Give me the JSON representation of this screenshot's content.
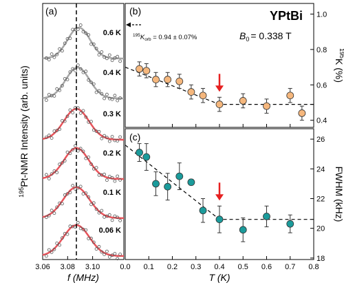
{
  "figure": {
    "material": "YPtBi",
    "field_label": "B",
    "field_sub": "0",
    "field_value": "= 0.338 T"
  },
  "chart_data": [
    {
      "panel": "(a)",
      "type": "line",
      "xlabel": "f (MHz)",
      "ylabel_sup": "195",
      "ylabel": "Pt-NMR Intensity (arb. units)",
      "xlim": [
        3.06,
        3.125
      ],
      "xticks": [
        "3.06",
        "3.08",
        "3.10"
      ],
      "xtick_values": [
        3.06,
        3.08,
        3.1
      ],
      "reference_line_x": 3.087,
      "series": [
        {
          "name": "0.6 K",
          "fit_color": "#a6a6a6",
          "peak": 3.089,
          "width": 0.009
        },
        {
          "name": "0.4 K",
          "fit_color": "#a6a6a6",
          "peak": 3.088,
          "width": 0.0095
        },
        {
          "name": "0.3 K",
          "fit_color": "#e8535a",
          "peak": 3.087,
          "width": 0.01
        },
        {
          "name": "0.2 K",
          "fit_color": "#e8535a",
          "peak": 3.087,
          "width": 0.01
        },
        {
          "name": "0.1 K",
          "fit_color": "#e8535a",
          "peak": 3.087,
          "width": 0.0105
        },
        {
          "name": "0.06 K",
          "fit_color": "#e8535a",
          "peak": 3.087,
          "width": 0.0105
        }
      ]
    },
    {
      "panel": "(b)",
      "type": "scatter",
      "xlabel": "T (K)",
      "ylabel_sup": "195",
      "ylabel": "K (%)",
      "xlim": [
        0,
        0.8
      ],
      "ylim": [
        0.36,
        1.06
      ],
      "yticks": [
        "0.4",
        "0.6",
        "0.8",
        "1.0"
      ],
      "ytick_values": [
        0.4,
        0.6,
        0.8,
        1.0
      ],
      "marker_color": "#f5b77d",
      "x": [
        0.06,
        0.09,
        0.13,
        0.18,
        0.23,
        0.28,
        0.33,
        0.4,
        0.5,
        0.6,
        0.7,
        0.75
      ],
      "y": [
        0.69,
        0.68,
        0.63,
        0.63,
        0.62,
        0.56,
        0.54,
        0.49,
        0.51,
        0.48,
        0.54,
        0.44
      ],
      "yerr": [
        0.04,
        0.04,
        0.04,
        0.04,
        0.04,
        0.04,
        0.04,
        0.04,
        0.04,
        0.04,
        0.04,
        0.04
      ],
      "guide_line": [
        [
          0.0,
          0.7
        ],
        [
          0.4,
          0.49
        ],
        [
          0.8,
          0.49
        ]
      ],
      "arrow_at_x": 0.4,
      "annotation": {
        "prefix_sup": "195",
        "symbol": "K",
        "symbol_sub": "orb",
        "text": " = 0.94 ± 0.07%",
        "value": 0.94
      }
    },
    {
      "panel": "(c)",
      "type": "scatter",
      "xlabel": "T (K)",
      "ylabel": "FWHM (kHz)",
      "xlim": [
        0,
        0.8
      ],
      "xticks": [
        "0.0",
        "0.1",
        "0.2",
        "0.3",
        "0.4",
        "0.5",
        "0.6",
        "0.7",
        "0.8"
      ],
      "xtick_values": [
        0.0,
        0.1,
        0.2,
        0.3,
        0.4,
        0.5,
        0.6,
        0.7,
        0.8
      ],
      "ylim": [
        17.9,
        26.7
      ],
      "yticks": [
        "18",
        "20",
        "22",
        "24",
        "26"
      ],
      "ytick_values": [
        18,
        20,
        22,
        24,
        26
      ],
      "marker_color": "#1b9b9b",
      "x": [
        0.06,
        0.09,
        0.13,
        0.18,
        0.23,
        0.28,
        0.33,
        0.4,
        0.5,
        0.6,
        0.7
      ],
      "y": [
        25.1,
        24.8,
        23.0,
        22.8,
        23.5,
        23.1,
        21.2,
        20.6,
        19.9,
        20.8,
        20.3
      ],
      "yerr": [
        0.6,
        0.9,
        0.8,
        0.9,
        0.9,
        0.2,
        0.8,
        0.9,
        0.8,
        0.7,
        0.6
      ],
      "guide_line": [
        [
          0.0,
          25.6
        ],
        [
          0.4,
          20.6
        ],
        [
          0.8,
          20.6
        ]
      ],
      "arrow_at_x": 0.4
    }
  ]
}
